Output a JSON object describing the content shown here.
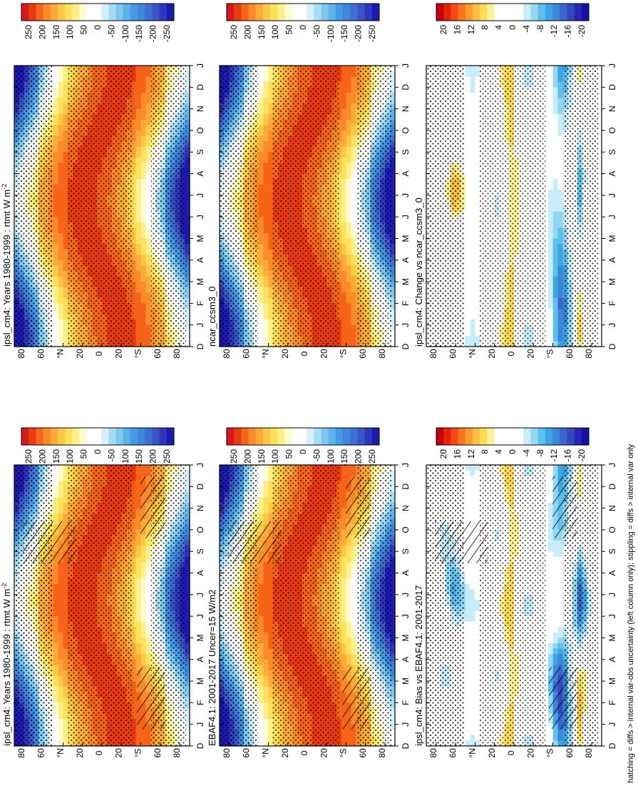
{
  "footer": "hatching = diffs > internal var-obs uncertainty (left column only); stippling = diffs > internal var only",
  "chart_data": [
    {
      "type": "heatmap",
      "title": "ipsl_cm4: Years 1980-1999 : rtmt W m",
      "title_sup": "-2",
      "x": [
        "D",
        "J",
        "F",
        "M",
        "A",
        "M",
        "J",
        "J",
        "A",
        "S",
        "O",
        "N",
        "D",
        "J"
      ],
      "y_ticks": [
        "80",
        "60",
        "°N",
        "20",
        "0",
        "20",
        "°S",
        "60",
        "80"
      ],
      "colorbar": [
        "250",
        "200",
        "150",
        "100",
        "50",
        "0",
        "-50",
        "-100",
        "-150",
        "-200",
        "-250"
      ],
      "palette": "main",
      "overlays": "stipple+hatch"
    },
    {
      "type": "heatmap",
      "title": "EBAF4.1: 2001-2017 Uncer=15 W/m2",
      "title_sup": "",
      "x": [
        "D",
        "J",
        "F",
        "M",
        "A",
        "M",
        "J",
        "J",
        "A",
        "S",
        "O",
        "N",
        "D",
        "J"
      ],
      "y_ticks": [
        "80",
        "60",
        "°N",
        "20",
        "0",
        "20",
        "°S",
        "60",
        "80"
      ],
      "colorbar": [
        "250",
        "200",
        "150",
        "100",
        "50",
        "0",
        "-50",
        "-100",
        "-150",
        "-200",
        "-250"
      ],
      "palette": "main",
      "overlays": "stipple+hatch"
    },
    {
      "type": "heatmap",
      "title": "ipsl_cm4: Bias vs EBAF4.1: 2001-2017",
      "title_sup": "",
      "x": [
        "D",
        "J",
        "F",
        "M",
        "A",
        "M",
        "J",
        "J",
        "A",
        "S",
        "O",
        "N",
        "D",
        "J"
      ],
      "y_ticks": [
        "80",
        "60",
        "°N",
        "20",
        "0",
        "20",
        "°S",
        "60",
        "80"
      ],
      "colorbar": [
        "20",
        "16",
        "12",
        "8",
        "4",
        "0",
        "-4",
        "-8",
        "-12",
        "-16",
        "-20"
      ],
      "palette": "diff",
      "overlays": "stipple+hatch"
    },
    {
      "type": "heatmap",
      "title": "ipsl_cm4: Years 1980-1999 : rtmt W m",
      "title_sup": "-2",
      "x": [
        "D",
        "J",
        "F",
        "M",
        "A",
        "M",
        "J",
        "J",
        "A",
        "S",
        "O",
        "N",
        "D",
        "J"
      ],
      "y_ticks": [
        "80",
        "60",
        "°N",
        "20",
        "0",
        "20",
        "°S",
        "60",
        "80"
      ],
      "colorbar": [
        "250",
        "200",
        "150",
        "100",
        "50",
        "0",
        "-50",
        "-100",
        "-150",
        "-200",
        "-250"
      ],
      "palette": "main",
      "overlays": "stipple"
    },
    {
      "type": "heatmap",
      "title": "ncar_ccsm3_0",
      "title_sup": "",
      "x": [
        "D",
        "J",
        "F",
        "M",
        "A",
        "M",
        "J",
        "J",
        "A",
        "S",
        "O",
        "N",
        "D",
        "J"
      ],
      "y_ticks": [
        "80",
        "60",
        "°N",
        "20",
        "0",
        "20",
        "°S",
        "60",
        "80"
      ],
      "colorbar": [
        "250",
        "200",
        "150",
        "100",
        "50",
        "0",
        "-50",
        "-100",
        "-150",
        "-200",
        "-250"
      ],
      "palette": "main",
      "overlays": "stipple"
    },
    {
      "type": "heatmap",
      "title": "ipsl_cm4: Change vs ncar_ccsm3_0",
      "title_sup": "",
      "x": [
        "D",
        "J",
        "F",
        "M",
        "A",
        "M",
        "J",
        "J",
        "A",
        "S",
        "O",
        "N",
        "D",
        "J"
      ],
      "y_ticks": [
        "80",
        "60",
        "°N",
        "20",
        "0",
        "20",
        "°S",
        "60",
        "80"
      ],
      "colorbar": [
        "20",
        "16",
        "12",
        "8",
        "4",
        "0",
        "-4",
        "-8",
        "-12",
        "-16",
        "-20"
      ],
      "palette": "diff",
      "overlays": "stipple"
    }
  ],
  "colors": {
    "main": [
      "#d7191c",
      "#ea3a12",
      "#f6641a",
      "#fb8a2a",
      "#fcab3a",
      "#fdc846",
      "#fde05c",
      "#fdf08a",
      "#fffdd0",
      "#ffffff",
      "#ffffff",
      "#d6f0fa",
      "#a8dcf4",
      "#7fc8ee",
      "#5cb2ea",
      "#449be3",
      "#3f85db",
      "#3d6ed0",
      "#3a55c6",
      "#2e36bd",
      "#1d1ab3"
    ],
    "diff": [
      "#c4000f",
      "#e8210c",
      "#f64a12",
      "#fb7520",
      "#fd9a30",
      "#fdbe44",
      "#fedc58",
      "#fff29a",
      "#ffffff",
      "#ffffff",
      "#ffffff",
      "#ffffff",
      "#c9ecfa",
      "#92d6f2",
      "#5ebfea",
      "#3ea5e3",
      "#3b86d9",
      "#3a66cc",
      "#3546c1",
      "#2526b6",
      "#1410a8"
    ]
  }
}
